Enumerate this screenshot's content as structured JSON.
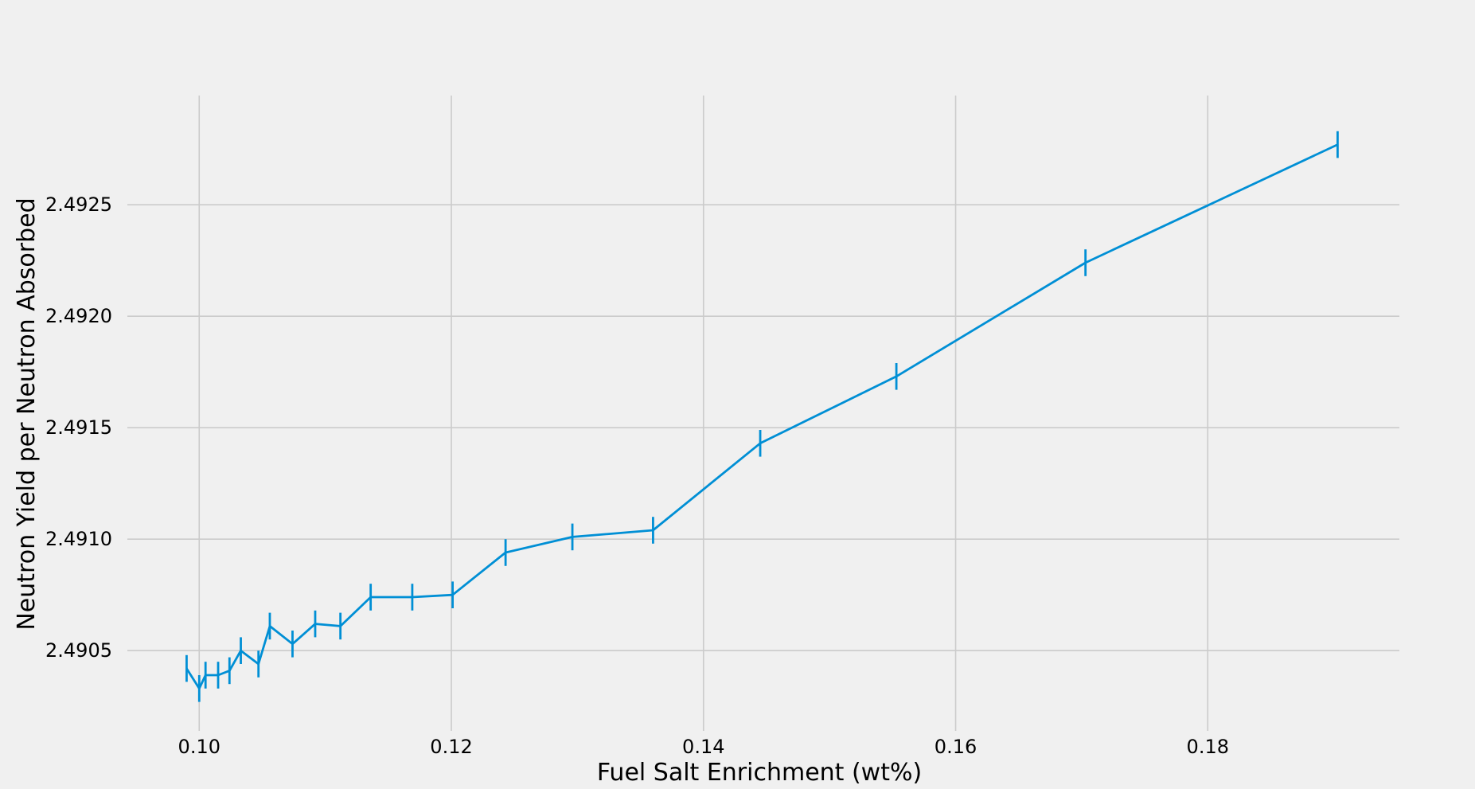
{
  "chart_data": {
    "type": "line",
    "title": "",
    "xlabel": "Fuel Salt Enrichment (wt%)",
    "ylabel": "Neutron Yield per Neutron Absorbed",
    "xlim": [
      0.0943,
      0.1952
    ],
    "ylim": [
      2.49014,
      2.49299
    ],
    "xticks": [
      0.1,
      0.12,
      0.14,
      0.16,
      0.18
    ],
    "xtick_labels": [
      "0.10",
      "0.12",
      "0.14",
      "0.16",
      "0.18"
    ],
    "yticks": [
      2.4905,
      2.491,
      2.4915,
      2.492,
      2.4925
    ],
    "ytick_labels": [
      "2.4905",
      "2.4910",
      "2.4915",
      "2.4920",
      "2.4925"
    ],
    "grid": true,
    "color": "#008fd5",
    "series": [
      {
        "x": [
          0.099,
          0.1,
          0.1005,
          0.1015,
          0.1024,
          0.1033,
          0.1047,
          0.1056,
          0.1074,
          0.1092,
          0.1112,
          0.1136,
          0.1169,
          0.1201,
          0.1243,
          0.1296,
          0.136,
          0.1445,
          0.1553,
          0.1703,
          0.1903
        ],
        "y": [
          2.49042,
          2.49033,
          2.49039,
          2.49039,
          2.49041,
          2.4905,
          2.49044,
          2.49061,
          2.49053,
          2.49062,
          2.49061,
          2.49074,
          2.49074,
          2.49075,
          2.49094,
          2.49101,
          2.49104,
          2.49143,
          2.49173,
          2.49224,
          2.49277
        ],
        "yerr": [
          6e-05,
          6e-05,
          6e-05,
          6e-05,
          6e-05,
          6e-05,
          6e-05,
          6e-05,
          6e-05,
          6e-05,
          6e-05,
          6e-05,
          6e-05,
          6e-05,
          6e-05,
          6e-05,
          6e-05,
          6e-05,
          6e-05,
          6e-05,
          6e-05
        ]
      }
    ]
  }
}
